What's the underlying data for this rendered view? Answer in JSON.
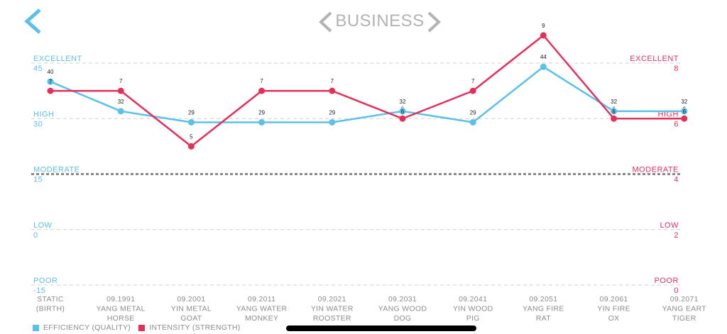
{
  "header": {
    "title": "BUSINESS"
  },
  "icons": {
    "back": "chevron-left-icon",
    "prev": "chevron-left-icon",
    "next": "chevron-right-icon"
  },
  "colors": {
    "efficiency": "#5bc0ea",
    "intensity": "#e3305a",
    "nav": "#b3b3b3",
    "back": "#5bc0ea"
  },
  "chart_data": {
    "type": "line",
    "categories": [
      [
        "STATIC",
        "(BIRTH)"
      ],
      [
        "09.1991",
        "YANG METAL",
        "HORSE"
      ],
      [
        "09.2001",
        "YIN METAL",
        "GOAT"
      ],
      [
        "09.2011",
        "YANG WATER",
        "MONKEY"
      ],
      [
        "09.2021",
        "YIN WATER",
        "ROOSTER"
      ],
      [
        "09.2031",
        "YANG WOOD",
        "DOG"
      ],
      [
        "09.2041",
        "YIN WOOD",
        "PIG"
      ],
      [
        "09.2051",
        "YANG FIRE",
        "RAT"
      ],
      [
        "09.2061",
        "YIN FIRE",
        "OX"
      ],
      [
        "09.2071",
        "YANG EART",
        "TIGER"
      ]
    ],
    "series": [
      {
        "name": "EFFICIENCY (QUALITY)",
        "axis": "left",
        "color": "#5bc0ea",
        "values": [
          40,
          32,
          29,
          29,
          29,
          32,
          29,
          44,
          32,
          32
        ]
      },
      {
        "name": "INTENSITY (STRENGTH)",
        "axis": "right",
        "color": "#e3305a",
        "values": [
          7,
          7,
          5,
          7,
          7,
          6,
          7,
          9,
          6,
          6
        ]
      }
    ],
    "point_badges": [
      {
        "index": 0,
        "text": "7"
      },
      {
        "index": 5,
        "text": "6"
      },
      {
        "index": 8,
        "text": "6"
      },
      {
        "index": 9,
        "text": "6"
      }
    ],
    "left_axis": {
      "ylim": [
        -15,
        45
      ],
      "ticks": [
        {
          "value": 45,
          "label": "EXCELLENT",
          "text": "45"
        },
        {
          "value": 30,
          "label": "HIGH",
          "text": "30"
        },
        {
          "value": 15,
          "label": "MODERATE",
          "text": "15"
        },
        {
          "value": 0,
          "label": "LOW",
          "text": "0"
        },
        {
          "value": -15,
          "label": "POOR",
          "text": "-15"
        }
      ]
    },
    "right_axis": {
      "ylim": [
        0,
        8
      ],
      "ticks": [
        {
          "value": 8,
          "label": "EXCELLENT",
          "text": "8"
        },
        {
          "value": 6,
          "label": "HIGH",
          "text": "6"
        },
        {
          "value": 4,
          "label": "MODERATE",
          "text": "4"
        },
        {
          "value": 2,
          "label": "LOW",
          "text": "2"
        },
        {
          "value": 0,
          "label": "POOR",
          "text": "0"
        }
      ]
    },
    "highlight_level": "MODERATE",
    "grid": true,
    "legend_position": "bottom-left"
  }
}
